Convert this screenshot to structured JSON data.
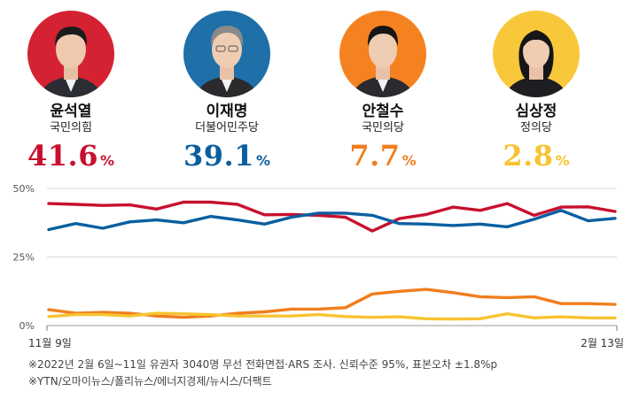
{
  "candidates": [
    {
      "name": "윤석열",
      "party": "국민의힘",
      "value": "41.6",
      "unit": "%",
      "color": "#c8102e",
      "photo_bg": "#d42232",
      "photo": "photo-yoon"
    },
    {
      "name": "이재명",
      "party": "더불어민주당",
      "value": "39.1",
      "unit": "%",
      "color": "#0a5fa0",
      "photo_bg": "#1f6fa8",
      "photo": "photo-lee"
    },
    {
      "name": "안철수",
      "party": "국민의당",
      "value": "7.7",
      "unit": "%",
      "color": "#f07e1d",
      "photo_bg": "#f58220",
      "photo": "photo-ahn"
    },
    {
      "name": "심상정",
      "party": "정의당",
      "value": "2.8",
      "unit": "%",
      "color": "#f7c332",
      "photo_bg": "#f9c83a",
      "photo": "photo-sim"
    }
  ],
  "chart_data": {
    "type": "line",
    "ylim": [
      0,
      50
    ],
    "yticks": [
      {
        "value": 50,
        "label": "50%"
      },
      {
        "value": 25,
        "label": "25%"
      },
      {
        "value": 0,
        "label": "0%"
      }
    ],
    "x_start_label": "11월 9일",
    "x_end_label": "2월 13일",
    "grid": true,
    "series": [
      {
        "name": "윤석열",
        "color": "#c8102e",
        "values": [
          44.5,
          44.2,
          43.8,
          44.0,
          42.5,
          45.0,
          45.0,
          44.2,
          40.4,
          40.5,
          40.2,
          39.5,
          34.5,
          39.0,
          40.5,
          43.2,
          42.0,
          44.5,
          40.2,
          43.2,
          43.3,
          41.6
        ]
      },
      {
        "name": "이재명",
        "color": "#0a5fa0",
        "values": [
          35.0,
          37.2,
          35.5,
          37.8,
          38.5,
          37.5,
          39.8,
          38.5,
          37.0,
          39.5,
          41.0,
          41.0,
          40.2,
          37.2,
          37.0,
          36.5,
          37.0,
          36.0,
          38.8,
          42.0,
          38.2,
          39.1
        ]
      },
      {
        "name": "안철수",
        "color": "#f07e1d",
        "values": [
          5.8,
          4.5,
          4.8,
          4.5,
          3.5,
          3.0,
          3.5,
          4.5,
          5.0,
          6.0,
          6.0,
          6.5,
          11.5,
          12.5,
          13.2,
          12.0,
          10.5,
          10.2,
          10.5,
          8.0,
          8.0,
          7.7
        ]
      },
      {
        "name": "심상정",
        "color": "#f7c332",
        "values": [
          3.3,
          4.0,
          4.0,
          3.5,
          4.5,
          4.3,
          4.0,
          3.5,
          3.5,
          3.5,
          4.0,
          3.3,
          3.0,
          3.2,
          2.5,
          2.4,
          2.5,
          4.3,
          2.8,
          3.2,
          2.8,
          2.8
        ]
      }
    ]
  },
  "notes": [
    "※2022년 2월 6일~11일 유권자 3040명 무선 전화면접·ARS 조사. 신뢰수준 95%, 표본오차 ±1.8%p",
    "※YTN/오마이뉴스/폴리뉴스/에너지경제/뉴시스/더팩트"
  ]
}
